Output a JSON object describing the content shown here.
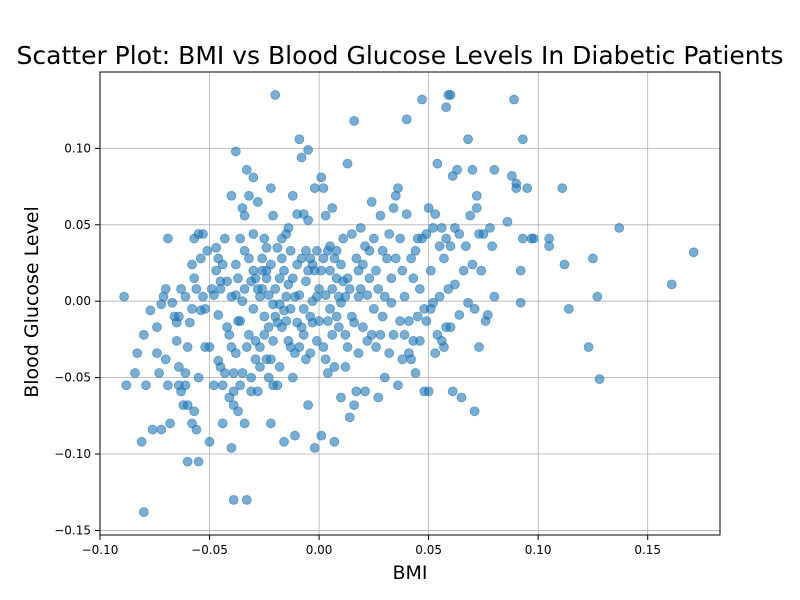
{
  "chart_data": {
    "type": "scatter",
    "title": "Scatter Plot: BMI vs Blood Glucose Levels In Diabetic Patients",
    "xlabel": "BMI",
    "ylabel": "Blood Glucose Level",
    "xlim": [
      -0.1,
      0.183
    ],
    "ylim": [
      -0.153,
      0.15
    ],
    "xticks": [
      -0.1,
      -0.05,
      0.0,
      0.05,
      0.1,
      0.15
    ],
    "xtick_labels": [
      "−0.10",
      "−0.05",
      "0.00",
      "0.05",
      "0.10",
      "0.15"
    ],
    "yticks": [
      -0.15,
      -0.1,
      -0.05,
      0.0,
      0.05,
      0.1
    ],
    "ytick_labels": [
      "−0.15",
      "−0.10",
      "−0.05",
      "0.00",
      "0.05",
      "0.10"
    ],
    "grid": true,
    "marker_color": "#1f77b4",
    "marker_alpha": 0.6,
    "points": [
      [
        -0.089,
        0.003
      ],
      [
        -0.088,
        -0.055
      ],
      [
        -0.084,
        -0.047
      ],
      [
        -0.083,
        -0.034
      ],
      [
        -0.081,
        -0.092
      ],
      [
        -0.08,
        -0.022
      ],
      [
        -0.08,
        -0.138
      ],
      [
        -0.079,
        -0.055
      ],
      [
        -0.077,
        -0.006
      ],
      [
        -0.076,
        -0.084
      ],
      [
        -0.074,
        -0.034
      ],
      [
        -0.074,
        -0.017
      ],
      [
        -0.073,
        -0.047
      ],
      [
        -0.072,
        -0.084
      ],
      [
        -0.072,
        -0.002
      ],
      [
        -0.071,
        0.003
      ],
      [
        -0.07,
        -0.038
      ],
      [
        -0.07,
        0.008
      ],
      [
        -0.069,
        -0.055
      ],
      [
        -0.069,
        0.041
      ],
      [
        -0.068,
        -0.08
      ],
      [
        -0.067,
        -0.001
      ],
      [
        -0.066,
        -0.01
      ],
      [
        -0.065,
        -0.026
      ],
      [
        -0.065,
        -0.014
      ],
      [
        -0.064,
        -0.055
      ],
      [
        -0.064,
        -0.043
      ],
      [
        -0.064,
        -0.01
      ],
      [
        -0.063,
        0.008
      ],
      [
        -0.063,
        -0.059
      ],
      [
        -0.062,
        -0.068
      ],
      [
        -0.061,
        -0.055
      ],
      [
        -0.061,
        -0.047
      ],
      [
        -0.061,
        0.003
      ],
      [
        -0.06,
        -0.068
      ],
      [
        -0.06,
        -0.105
      ],
      [
        -0.06,
        -0.03
      ],
      [
        -0.059,
        -0.014
      ],
      [
        -0.058,
        -0.08
      ],
      [
        -0.058,
        -0.005
      ],
      [
        -0.058,
        0.024
      ],
      [
        -0.057,
        0.041
      ],
      [
        -0.057,
        0.015
      ],
      [
        -0.057,
        -0.072
      ],
      [
        -0.056,
        0.008
      ],
      [
        -0.056,
        -0.084
      ],
      [
        -0.055,
        -0.05
      ],
      [
        -0.055,
        0.044
      ],
      [
        -0.055,
        -0.105
      ],
      [
        -0.054,
        0.028
      ],
      [
        -0.054,
        -0.006
      ],
      [
        -0.053,
        0.003
      ],
      [
        -0.053,
        0.044
      ],
      [
        -0.052,
        -0.03
      ],
      [
        -0.052,
        -0.005
      ],
      [
        -0.051,
        0.033
      ],
      [
        -0.05,
        -0.092
      ],
      [
        -0.05,
        -0.03
      ],
      [
        -0.049,
        0.008
      ],
      [
        -0.048,
        -0.055
      ],
      [
        -0.048,
        0.004
      ],
      [
        -0.047,
        0.02
      ],
      [
        -0.047,
        0.035
      ],
      [
        -0.046,
        -0.039
      ],
      [
        -0.046,
        -0.009
      ],
      [
        -0.046,
        0.028
      ],
      [
        -0.045,
        -0.043
      ],
      [
        -0.045,
        0.013
      ],
      [
        -0.045,
        0.008
      ],
      [
        -0.044,
        -0.08
      ],
      [
        -0.044,
        -0.055
      ],
      [
        -0.044,
        0.024
      ],
      [
        -0.043,
        -0.047
      ],
      [
        -0.043,
        0.041
      ],
      [
        -0.042,
        -0.017
      ],
      [
        -0.042,
        0.013
      ],
      [
        -0.041,
        -0.022
      ],
      [
        -0.041,
        -0.063
      ],
      [
        -0.04,
        0.003
      ],
      [
        -0.04,
        0.069
      ],
      [
        -0.04,
        -0.03
      ],
      [
        -0.04,
        -0.096
      ],
      [
        -0.039,
        -0.047
      ],
      [
        -0.039,
        -0.059
      ],
      [
        -0.039,
        -0.068
      ],
      [
        -0.039,
        -0.13
      ],
      [
        -0.038,
        0.024
      ],
      [
        -0.038,
        0.004
      ],
      [
        -0.038,
        0.098
      ],
      [
        -0.038,
        -0.034
      ],
      [
        -0.037,
        -0.072
      ],
      [
        -0.037,
        0.015
      ],
      [
        -0.037,
        -0.013
      ],
      [
        -0.036,
        0.041
      ],
      [
        -0.036,
        -0.055
      ],
      [
        -0.036,
        -0.013
      ],
      [
        -0.035,
        0.061
      ],
      [
        -0.035,
        0.0
      ],
      [
        -0.035,
        -0.047
      ],
      [
        -0.034,
        0.033
      ],
      [
        -0.034,
        0.008
      ],
      [
        -0.034,
        0.056
      ],
      [
        -0.034,
        -0.08
      ],
      [
        -0.033,
        -0.13
      ],
      [
        -0.033,
        0.086
      ],
      [
        -0.033,
        -0.03
      ],
      [
        -0.032,
        0.069
      ],
      [
        -0.032,
        0.028
      ],
      [
        -0.032,
        -0.022
      ],
      [
        -0.031,
        -0.059
      ],
      [
        -0.031,
        0.013
      ],
      [
        -0.031,
        -0.05
      ],
      [
        -0.03,
        0.02
      ],
      [
        -0.03,
        -0.005
      ],
      [
        -0.03,
        0.044
      ],
      [
        -0.03,
        0.081
      ],
      [
        -0.029,
        -0.038
      ],
      [
        -0.029,
        0.015
      ],
      [
        -0.029,
        -0.026
      ],
      [
        -0.028,
        0.008
      ],
      [
        -0.028,
        -0.059
      ],
      [
        -0.028,
        0.065
      ],
      [
        -0.027,
        0.003
      ],
      [
        -0.027,
        -0.03
      ],
      [
        -0.027,
        -0.043
      ],
      [
        -0.026,
        0.028
      ],
      [
        -0.026,
        0.008
      ],
      [
        -0.026,
        0.02
      ],
      [
        -0.025,
        -0.01
      ],
      [
        -0.025,
        0.041
      ],
      [
        -0.025,
        -0.022
      ],
      [
        -0.024,
        0.015
      ],
      [
        -0.024,
        0.02
      ],
      [
        -0.024,
        -0.038
      ],
      [
        -0.024,
        0.035
      ],
      [
        -0.023,
        -0.017
      ],
      [
        -0.023,
        -0.05
      ],
      [
        -0.023,
        0.004
      ],
      [
        -0.022,
        0.074
      ],
      [
        -0.022,
        -0.08
      ],
      [
        -0.022,
        0.024
      ],
      [
        -0.022,
        -0.038
      ],
      [
        -0.021,
        0.056
      ],
      [
        -0.021,
        -0.002
      ],
      [
        -0.021,
        -0.026
      ],
      [
        -0.021,
        -0.055
      ],
      [
        -0.02,
        0.135
      ],
      [
        -0.02,
        -0.01
      ],
      [
        -0.02,
        0.008
      ],
      [
        -0.019,
        -0.014
      ],
      [
        -0.019,
        0.035
      ],
      [
        -0.019,
        -0.055
      ],
      [
        -0.018,
        0.015
      ],
      [
        -0.018,
        -0.043
      ],
      [
        -0.018,
        -0.002
      ],
      [
        -0.017,
        0.028
      ],
      [
        -0.017,
        0.041
      ],
      [
        -0.017,
        -0.017
      ],
      [
        -0.016,
        0.02
      ],
      [
        -0.016,
        -0.092
      ],
      [
        -0.016,
        -0.006
      ],
      [
        -0.015,
        0.044
      ],
      [
        -0.015,
        0.003
      ],
      [
        -0.015,
        -0.013
      ],
      [
        -0.014,
        0.048
      ],
      [
        -0.014,
        -0.026
      ],
      [
        -0.014,
        0.011
      ],
      [
        -0.013,
        -0.005
      ],
      [
        -0.013,
        0.033
      ],
      [
        -0.013,
        -0.03
      ],
      [
        -0.012,
        -0.05
      ],
      [
        -0.012,
        0.069
      ],
      [
        -0.012,
        0.015
      ],
      [
        -0.011,
        -0.088
      ],
      [
        -0.011,
        -0.034
      ],
      [
        -0.011,
        0.003
      ],
      [
        -0.01,
        0.057
      ],
      [
        -0.01,
        -0.014
      ],
      [
        -0.01,
        0.024
      ],
      [
        -0.009,
        0.106
      ],
      [
        -0.009,
        -0.03
      ],
      [
        -0.009,
        0.004
      ],
      [
        -0.008,
        -0.017
      ],
      [
        -0.008,
        0.094
      ],
      [
        -0.008,
        0.028
      ],
      [
        -0.007,
        0.057
      ],
      [
        -0.007,
        -0.022
      ],
      [
        -0.007,
        -0.005
      ],
      [
        -0.006,
        0.013
      ],
      [
        -0.006,
        -0.038
      ],
      [
        -0.006,
        0.033
      ],
      [
        -0.005,
        0.099
      ],
      [
        -0.005,
        0.053
      ],
      [
        -0.005,
        -0.068
      ],
      [
        -0.005,
        0.02
      ],
      [
        -0.004,
        -0.01
      ],
      [
        -0.004,
        0.028
      ],
      [
        -0.004,
        -0.034
      ],
      [
        -0.003,
        0.024
      ],
      [
        -0.003,
        0.0
      ],
      [
        -0.003,
        -0.014
      ],
      [
        -0.002,
        0.074
      ],
      [
        -0.002,
        -0.096
      ],
      [
        -0.002,
        0.02
      ],
      [
        -0.001,
        0.003
      ],
      [
        -0.001,
        0.033
      ],
      [
        -0.001,
        -0.026
      ],
      [
        0.0,
        0.008
      ],
      [
        0.0,
        -0.013
      ],
      [
        0.001,
        0.081
      ],
      [
        0.001,
        -0.088
      ],
      [
        0.001,
        0.02
      ],
      [
        0.002,
        0.074
      ],
      [
        0.002,
        -0.03
      ],
      [
        0.002,
        0.028
      ],
      [
        0.003,
        0.004
      ],
      [
        0.003,
        -0.038
      ],
      [
        0.003,
        0.056
      ],
      [
        0.004,
        0.033
      ],
      [
        0.004,
        -0.047
      ],
      [
        0.004,
        -0.013
      ],
      [
        0.005,
        0.036
      ],
      [
        0.005,
        0.02
      ],
      [
        0.005,
        -0.005
      ],
      [
        0.006,
        0.061
      ],
      [
        0.006,
        -0.022
      ],
      [
        0.006,
        0.008
      ],
      [
        0.007,
        0.028
      ],
      [
        0.007,
        -0.092
      ],
      [
        0.007,
        -0.043
      ],
      [
        0.008,
        0.015
      ],
      [
        0.008,
        -0.01
      ],
      [
        0.008,
        0.033
      ],
      [
        0.009,
        0.003
      ],
      [
        0.009,
        -0.017
      ],
      [
        0.01,
        -0.063
      ],
      [
        0.01,
        0.024
      ],
      [
        0.01,
        -0.001
      ],
      [
        0.011,
        0.013
      ],
      [
        0.011,
        0.041
      ],
      [
        0.012,
        -0.043
      ],
      [
        0.012,
        -0.022
      ],
      [
        0.012,
        0.003
      ],
      [
        0.013,
        0.09
      ],
      [
        0.013,
        -0.03
      ],
      [
        0.013,
        0.015
      ],
      [
        0.014,
        -0.076
      ],
      [
        0.014,
        0.008
      ],
      [
        0.015,
        -0.01
      ],
      [
        0.015,
        0.044
      ],
      [
        0.016,
        -0.068
      ],
      [
        0.016,
        0.118
      ],
      [
        0.016,
        -0.014
      ],
      [
        0.017,
        0.028
      ],
      [
        0.017,
        -0.059
      ],
      [
        0.018,
        0.003
      ],
      [
        0.018,
        0.02
      ],
      [
        0.018,
        -0.034
      ],
      [
        0.019,
        0.048
      ],
      [
        0.019,
        0.008
      ],
      [
        0.02,
        -0.017
      ],
      [
        0.02,
        0.024
      ],
      [
        0.021,
        -0.059
      ],
      [
        0.021,
        0.036
      ],
      [
        0.022,
        0.004
      ],
      [
        0.022,
        -0.026
      ],
      [
        0.023,
        0.033
      ],
      [
        0.023,
        0.015
      ],
      [
        0.024,
        -0.022
      ],
      [
        0.024,
        0.065
      ],
      [
        0.025,
        -0.005
      ],
      [
        0.025,
        0.041
      ],
      [
        0.026,
        -0.03
      ],
      [
        0.026,
        0.02
      ],
      [
        0.027,
        0.008
      ],
      [
        0.027,
        -0.063
      ],
      [
        0.028,
        0.056
      ],
      [
        0.028,
        -0.022
      ],
      [
        0.029,
        0.033
      ],
      [
        0.029,
        -0.01
      ],
      [
        0.03,
        0.003
      ],
      [
        0.03,
        -0.05
      ],
      [
        0.031,
        0.028
      ],
      [
        0.032,
        0.044
      ],
      [
        0.032,
        -0.034
      ],
      [
        0.033,
        0.015
      ],
      [
        0.033,
        -0.001
      ],
      [
        0.034,
        0.061
      ],
      [
        0.034,
        -0.022
      ],
      [
        0.035,
        0.069
      ],
      [
        0.035,
        0.028
      ],
      [
        0.036,
        -0.055
      ],
      [
        0.036,
        0.074
      ],
      [
        0.037,
        -0.013
      ],
      [
        0.037,
        0.041
      ],
      [
        0.038,
        -0.038
      ],
      [
        0.038,
        0.02
      ],
      [
        0.039,
        0.003
      ],
      [
        0.039,
        -0.022
      ],
      [
        0.04,
        0.119
      ],
      [
        0.04,
        0.057
      ],
      [
        0.041,
        -0.034
      ],
      [
        0.041,
        -0.013
      ],
      [
        0.042,
        0.028
      ],
      [
        0.042,
        -0.038
      ],
      [
        0.043,
        0.015
      ],
      [
        0.043,
        -0.026
      ],
      [
        0.044,
        -0.047
      ],
      [
        0.044,
        0.033
      ],
      [
        0.045,
        -0.01
      ],
      [
        0.045,
        0.041
      ],
      [
        0.046,
        0.008
      ],
      [
        0.046,
        -0.026
      ],
      [
        0.047,
        0.132
      ],
      [
        0.047,
        0.041
      ],
      [
        0.048,
        -0.059
      ],
      [
        0.048,
        -0.005
      ],
      [
        0.049,
        0.044
      ],
      [
        0.049,
        -0.013
      ],
      [
        0.05,
        -0.059
      ],
      [
        0.05,
        0.061
      ],
      [
        0.051,
        0.02
      ],
      [
        0.051,
        -0.005
      ],
      [
        0.052,
        0.048
      ],
      [
        0.052,
        -0.001
      ],
      [
        0.053,
        -0.034
      ],
      [
        0.053,
        0.057
      ],
      [
        0.054,
        0.09
      ],
      [
        0.054,
        -0.022
      ],
      [
        0.055,
        0.036
      ],
      [
        0.055,
        0.003
      ],
      [
        0.056,
        0.048
      ],
      [
        0.056,
        -0.026
      ],
      [
        0.057,
        0.028
      ],
      [
        0.057,
        -0.03
      ],
      [
        0.058,
        0.127
      ],
      [
        0.058,
        0.041
      ],
      [
        0.058,
        -0.017
      ],
      [
        0.059,
        0.008
      ],
      [
        0.059,
        0.135
      ],
      [
        0.06,
        0.135
      ],
      [
        0.06,
        -0.017
      ],
      [
        0.06,
        0.036
      ],
      [
        0.061,
        0.082
      ],
      [
        0.061,
        -0.059
      ],
      [
        0.062,
        0.011
      ],
      [
        0.062,
        0.048
      ],
      [
        0.063,
        0.086
      ],
      [
        0.064,
        -0.009
      ],
      [
        0.064,
        0.044
      ],
      [
        0.065,
        -0.063
      ],
      [
        0.066,
        0.02
      ],
      [
        0.067,
        0.036
      ],
      [
        0.068,
        0.106
      ],
      [
        0.068,
        -0.001
      ],
      [
        0.069,
        0.056
      ],
      [
        0.07,
        0.086
      ],
      [
        0.07,
        0.024
      ],
      [
        0.071,
        -0.072
      ],
      [
        0.071,
        -0.005
      ],
      [
        0.072,
        0.061
      ],
      [
        0.072,
        0.069
      ],
      [
        0.073,
        0.044
      ],
      [
        0.073,
        -0.03
      ],
      [
        0.074,
        0.02
      ],
      [
        0.075,
        0.044
      ],
      [
        0.076,
        -0.013
      ],
      [
        0.077,
        -0.009
      ],
      [
        0.078,
        0.048
      ],
      [
        0.079,
        0.036
      ],
      [
        0.08,
        0.086
      ],
      [
        0.08,
        0.003
      ],
      [
        0.086,
        0.052
      ],
      [
        0.088,
        0.082
      ],
      [
        0.089,
        0.132
      ],
      [
        0.09,
        0.077
      ],
      [
        0.09,
        0.074
      ],
      [
        0.092,
        0.02
      ],
      [
        0.092,
        -0.001
      ],
      [
        0.093,
        0.041
      ],
      [
        0.093,
        0.106
      ],
      [
        0.095,
        0.074
      ],
      [
        0.097,
        0.041
      ],
      [
        0.098,
        0.041
      ],
      [
        0.105,
        0.041
      ],
      [
        0.105,
        0.036
      ],
      [
        0.111,
        0.074
      ],
      [
        0.112,
        0.024
      ],
      [
        0.114,
        -0.005
      ],
      [
        0.123,
        -0.03
      ],
      [
        0.125,
        0.028
      ],
      [
        0.127,
        0.003
      ],
      [
        0.128,
        -0.051
      ],
      [
        0.137,
        0.048
      ],
      [
        0.161,
        0.011
      ],
      [
        0.171,
        0.032
      ]
    ]
  }
}
